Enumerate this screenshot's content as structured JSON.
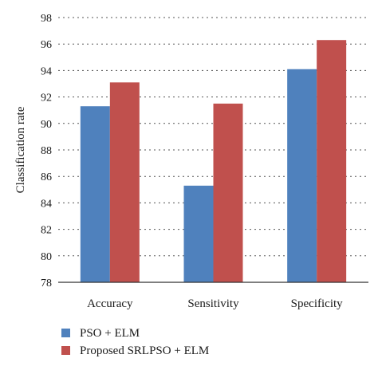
{
  "chart_data": {
    "type": "bar",
    "categories": [
      "Accuracy",
      "Sensitivity",
      "Specificity"
    ],
    "series": [
      {
        "name": "PSO + ELM",
        "values": [
          91.3,
          85.3,
          94.1
        ],
        "color": "#4f81bd"
      },
      {
        "name": "Proposed SRLPSO + ELM",
        "values": [
          93.1,
          91.5,
          96.3
        ],
        "color": "#c0504d"
      }
    ],
    "title": "",
    "xlabel": "",
    "ylabel": "Classification rate",
    "ylim": [
      78,
      98
    ],
    "yticks": [
      78,
      80,
      82,
      84,
      86,
      88,
      90,
      92,
      94,
      96,
      98
    ],
    "grid": "horizontal dotted",
    "legend_position": "bottom-left"
  }
}
